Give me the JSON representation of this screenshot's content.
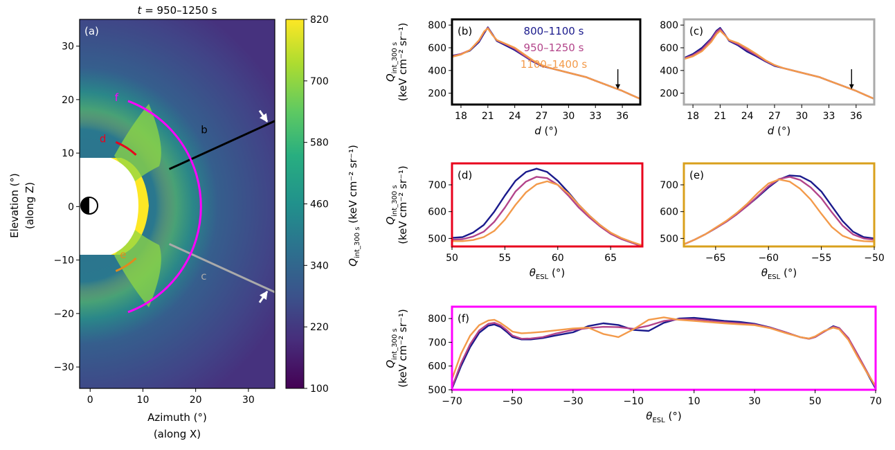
{
  "chart_data": [
    {
      "panel": "a",
      "type": "heatmap",
      "tag": "(a)",
      "title_pre": "t",
      "title_post": " = 950–1250 s",
      "xlabel": "Azimuth (°)",
      "xlabel2": "(along X)",
      "ylabel": "Elevation (°)",
      "ylabel2": "(along Z)",
      "xlim": [
        -2,
        35
      ],
      "ylim": [
        -34,
        35
      ],
      "xticks": [
        0,
        10,
        20,
        30
      ],
      "yticks": [
        -30,
        -20,
        -10,
        0,
        10,
        20,
        30
      ],
      "colorbar": {
        "range": [
          100,
          820
        ],
        "ticks": [
          100,
          220,
          340,
          460,
          580,
          700,
          820
        ],
        "label_main": "Q",
        "label_sub": "int_300 s",
        "label_units": " (keV cm⁻² sr⁻¹)"
      },
      "cuts": [
        {
          "name": "b",
          "color": "#000000",
          "from": [
            15,
            7
          ],
          "to": [
            35,
            16
          ]
        },
        {
          "name": "c",
          "color": "#aaaaaa",
          "from": [
            15,
            -7
          ],
          "to": [
            35,
            -16
          ]
        },
        {
          "name": "d",
          "color": "#e8001c",
          "arc_deg": [
            48,
            68
          ],
          "radius": 13
        },
        {
          "name": "e",
          "color": "#e08a1e",
          "arc_deg": [
            -68,
            -48
          ],
          "radius": 13
        },
        {
          "name": "f",
          "color": "#ff00ff",
          "arc_deg": [
            -70,
            70
          ],
          "radius": 21
        }
      ]
    },
    {
      "panel": "b",
      "type": "line",
      "tag": "(b)",
      "frame_color": "#000000",
      "xlabel": "d (°)",
      "ylabel": "Q_int_300 s (keV cm⁻² sr⁻¹)",
      "xlim": [
        17,
        38
      ],
      "ylim": [
        100,
        850
      ],
      "xticks": [
        18,
        21,
        24,
        27,
        30,
        33,
        36
      ],
      "yticks": [
        200,
        400,
        600,
        800
      ],
      "arrow_x": 35.5,
      "series": [
        {
          "name": "800–1100 s",
          "color": "#1a1a8c",
          "x": [
            17,
            18,
            19,
            20,
            20.6,
            21,
            21.5,
            22,
            23,
            24,
            25,
            26,
            27,
            28,
            30,
            32,
            33,
            34,
            35,
            36,
            37,
            38
          ],
          "y": [
            530,
            545,
            575,
            650,
            730,
            780,
            720,
            660,
            620,
            580,
            530,
            480,
            440,
            420,
            380,
            340,
            310,
            280,
            250,
            220,
            185,
            150
          ]
        },
        {
          "name": "950–1250 s",
          "color": "#b3448a",
          "x": [
            17,
            18,
            19,
            20,
            20.6,
            21,
            21.5,
            22,
            23,
            24,
            25,
            26,
            27,
            28,
            30,
            32,
            33,
            34,
            35,
            36,
            37,
            38
          ],
          "y": [
            525,
            545,
            580,
            660,
            740,
            775,
            715,
            665,
            630,
            590,
            535,
            485,
            445,
            420,
            380,
            340,
            310,
            280,
            250,
            220,
            185,
            150
          ]
        },
        {
          "name": "1100–1400 s",
          "color": "#f39a4a",
          "x": [
            17,
            18,
            19,
            20,
            20.6,
            21,
            21.5,
            22,
            23,
            24,
            25,
            26,
            27,
            28,
            30,
            32,
            33,
            34,
            35,
            36,
            37,
            38
          ],
          "y": [
            520,
            540,
            580,
            665,
            745,
            770,
            712,
            668,
            635,
            600,
            545,
            490,
            448,
            420,
            380,
            340,
            310,
            280,
            250,
            220,
            185,
            150
          ]
        }
      ]
    },
    {
      "panel": "c",
      "type": "line",
      "tag": "(c)",
      "frame_color": "#aaaaaa",
      "xlabel": "d (°)",
      "xlim": [
        17,
        38
      ],
      "ylim": [
        100,
        850
      ],
      "xticks": [
        18,
        21,
        24,
        27,
        30,
        33,
        36
      ],
      "yticks": [
        200,
        400,
        600,
        800
      ],
      "arrow_x": 35.5,
      "series": [
        {
          "name": "800–1100 s",
          "color": "#1a1a8c",
          "x": [
            17,
            18,
            19,
            20,
            20.6,
            21,
            21.5,
            22,
            23,
            24,
            25,
            26,
            27,
            28,
            30,
            32,
            33,
            34,
            35,
            36,
            37,
            38
          ],
          "y": [
            510,
            545,
            600,
            680,
            750,
            775,
            720,
            660,
            620,
            565,
            525,
            480,
            440,
            420,
            380,
            340,
            310,
            280,
            250,
            220,
            185,
            150
          ]
        },
        {
          "name": "950–1250 s",
          "color": "#b3448a",
          "x": [
            17,
            18,
            19,
            20,
            20.6,
            21,
            21.5,
            22,
            23,
            24,
            25,
            26,
            27,
            28,
            30,
            32,
            33,
            34,
            35,
            36,
            37,
            38
          ],
          "y": [
            505,
            535,
            585,
            670,
            740,
            765,
            715,
            665,
            630,
            580,
            535,
            485,
            445,
            420,
            380,
            340,
            310,
            280,
            250,
            220,
            185,
            150
          ]
        },
        {
          "name": "1100–1400 s",
          "color": "#f39a4a",
          "x": [
            17,
            18,
            19,
            20,
            20.6,
            21,
            21.5,
            22,
            23,
            24,
            25,
            26,
            27,
            28,
            30,
            32,
            33,
            34,
            35,
            36,
            37,
            38
          ],
          "y": [
            500,
            525,
            570,
            650,
            720,
            750,
            712,
            668,
            640,
            595,
            545,
            490,
            448,
            420,
            380,
            340,
            310,
            280,
            250,
            220,
            185,
            150
          ]
        }
      ]
    },
    {
      "panel": "d",
      "type": "line",
      "tag": "(d)",
      "frame_color": "#e8001c",
      "xlabel_main": "θ",
      "xlabel_sub": "ESL",
      "xlabel_units": " (°)",
      "xlim": [
        50,
        68
      ],
      "ylim": [
        470,
        780
      ],
      "xticks": [
        50,
        55,
        60,
        65
      ],
      "yticks": [
        500,
        600,
        700
      ],
      "series": [
        {
          "name": "800–1100 s",
          "color": "#1a1a8c",
          "x": [
            50,
            51,
            52,
            53,
            54,
            55,
            56,
            57,
            58,
            59,
            60,
            61,
            62,
            63,
            64,
            65,
            66,
            67,
            68
          ],
          "y": [
            502,
            505,
            522,
            550,
            600,
            660,
            715,
            748,
            760,
            748,
            715,
            672,
            625,
            585,
            550,
            520,
            500,
            485,
            470
          ]
        },
        {
          "name": "950–1250 s",
          "color": "#b3448a",
          "x": [
            50,
            51,
            52,
            53,
            54,
            55,
            56,
            57,
            58,
            59,
            60,
            61,
            62,
            63,
            64,
            65,
            66,
            67,
            68
          ],
          "y": [
            495,
            497,
            507,
            525,
            562,
            615,
            675,
            712,
            730,
            725,
            700,
            660,
            615,
            578,
            545,
            517,
            498,
            484,
            470
          ]
        },
        {
          "name": "1100–1400 s",
          "color": "#f39a4a",
          "x": [
            50,
            51,
            52,
            53,
            54,
            55,
            56,
            57,
            58,
            59,
            60,
            61,
            62,
            63,
            64,
            65,
            66,
            67,
            68
          ],
          "y": [
            490,
            490,
            494,
            505,
            528,
            570,
            625,
            672,
            702,
            713,
            700,
            668,
            625,
            585,
            550,
            522,
            502,
            487,
            474
          ]
        }
      ]
    },
    {
      "panel": "e",
      "type": "line",
      "tag": "(e)",
      "frame_color": "#d9a01c",
      "xlabel_main": "θ",
      "xlabel_sub": "ESL",
      "xlabel_units": " (°)",
      "xlim": [
        -68,
        -50
      ],
      "ylim": [
        470,
        780
      ],
      "xticks": [
        -65,
        -60,
        -55,
        -50
      ],
      "yticks": [
        500,
        600,
        700
      ],
      "series": [
        {
          "name": "800–1100 s",
          "color": "#1a1a8c",
          "x": [
            -68,
            -67,
            -66,
            -65,
            -64,
            -63,
            -62,
            -61,
            -60,
            -59,
            -58,
            -57,
            -56,
            -55,
            -54,
            -53,
            -52,
            -51,
            -50
          ],
          "y": [
            478,
            495,
            515,
            538,
            562,
            590,
            622,
            655,
            690,
            720,
            735,
            732,
            712,
            675,
            620,
            565,
            525,
            505,
            500
          ]
        },
        {
          "name": "950–1250 s",
          "color": "#b3448a",
          "x": [
            -68,
            -67,
            -66,
            -65,
            -64,
            -63,
            -62,
            -61,
            -60,
            -59,
            -58,
            -57,
            -56,
            -55,
            -54,
            -53,
            -52,
            -51,
            -50
          ],
          "y": [
            478,
            495,
            515,
            538,
            562,
            590,
            622,
            658,
            695,
            722,
            730,
            718,
            690,
            650,
            597,
            548,
            515,
            500,
            495
          ]
        },
        {
          "name": "1100–1400 s",
          "color": "#f39a4a",
          "x": [
            -68,
            -67,
            -66,
            -65,
            -64,
            -63,
            -62,
            -61,
            -60,
            -59,
            -58,
            -57,
            -56,
            -55,
            -54,
            -53,
            -52,
            -51,
            -50
          ],
          "y": [
            478,
            495,
            515,
            540,
            565,
            595,
            630,
            670,
            705,
            720,
            712,
            685,
            645,
            592,
            542,
            510,
            495,
            490,
            488
          ]
        }
      ]
    },
    {
      "panel": "f",
      "type": "line",
      "tag": "(f)",
      "frame_color": "#ff00ff",
      "xlabel_main": "θ",
      "xlabel_sub": "ESL",
      "xlabel_units": " (°)",
      "xlim": [
        -70,
        70
      ],
      "ylim": [
        500,
        850
      ],
      "xticks": [
        -70,
        -50,
        -30,
        -10,
        10,
        30,
        50,
        70
      ],
      "yticks": [
        500,
        600,
        700,
        800
      ],
      "series": [
        {
          "name": "800–1100 s",
          "color": "#1a1a8c",
          "x": [
            -70,
            -67,
            -64,
            -61,
            -58,
            -56,
            -54,
            -52,
            -50,
            -47,
            -44,
            -40,
            -36,
            -30,
            -25,
            -20,
            -15,
            -10,
            -5,
            0,
            5,
            10,
            15,
            20,
            25,
            30,
            35,
            40,
            45,
            48,
            50,
            53,
            56,
            58,
            61,
            64,
            67,
            70
          ],
          "y": [
            505,
            600,
            680,
            740,
            770,
            775,
            765,
            745,
            722,
            712,
            712,
            718,
            728,
            742,
            768,
            780,
            773,
            752,
            748,
            782,
            800,
            803,
            797,
            790,
            786,
            778,
            763,
            743,
            722,
            715,
            722,
            745,
            768,
            760,
            715,
            645,
            575,
            505
          ]
        },
        {
          "name": "950–1250 s",
          "color": "#b3448a",
          "x": [
            -70,
            -67,
            -64,
            -61,
            -58,
            -56,
            -54,
            -52,
            -50,
            -47,
            -44,
            -40,
            -36,
            -30,
            -25,
            -20,
            -15,
            -10,
            -5,
            0,
            5,
            10,
            15,
            20,
            25,
            30,
            35,
            40,
            45,
            48,
            50,
            53,
            56,
            58,
            61,
            64,
            67,
            70
          ],
          "y": [
            510,
            612,
            692,
            750,
            778,
            782,
            772,
            752,
            728,
            715,
            716,
            722,
            736,
            752,
            760,
            765,
            764,
            757,
            770,
            790,
            797,
            797,
            790,
            785,
            780,
            775,
            762,
            743,
            722,
            715,
            722,
            745,
            765,
            760,
            718,
            650,
            580,
            510
          ]
        },
        {
          "name": "1100–1400 s",
          "color": "#f39a4a",
          "x": [
            -70,
            -67,
            -64,
            -61,
            -58,
            -56,
            -54,
            -52,
            -50,
            -47,
            -44,
            -40,
            -36,
            -30,
            -25,
            -20,
            -15,
            -10,
            -5,
            0,
            5,
            10,
            15,
            20,
            25,
            30,
            35,
            40,
            45,
            48,
            50,
            53,
            56,
            58,
            61,
            64,
            67,
            70
          ],
          "y": [
            545,
            652,
            728,
            772,
            792,
            795,
            782,
            764,
            745,
            738,
            740,
            744,
            750,
            758,
            762,
            735,
            722,
            755,
            795,
            805,
            795,
            790,
            785,
            780,
            776,
            772,
            760,
            740,
            722,
            716,
            725,
            748,
            762,
            755,
            710,
            640,
            575,
            515
          ]
        }
      ]
    }
  ],
  "legend": [
    "800–1100 s",
    "950–1250 s",
    "1100–1400 s"
  ]
}
